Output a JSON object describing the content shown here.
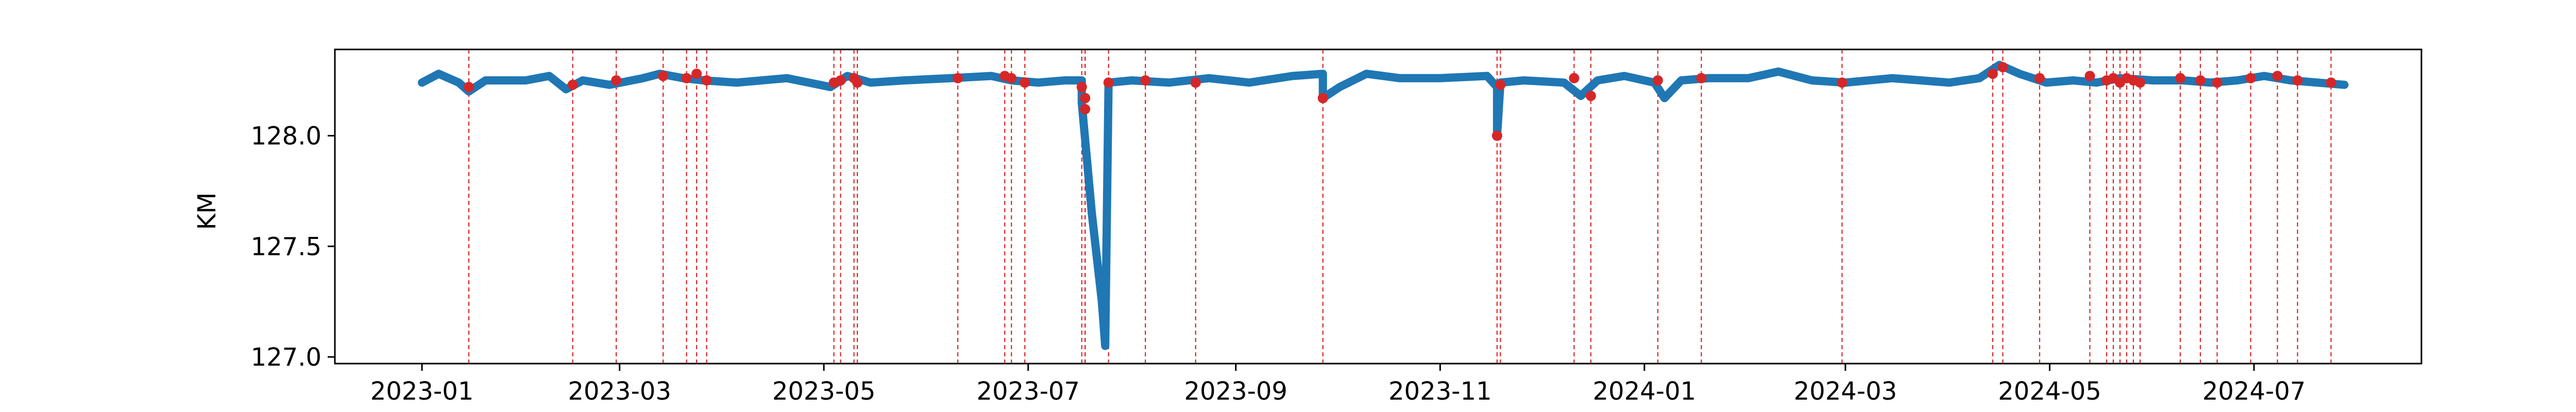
{
  "chart_data": {
    "type": "line",
    "title": "",
    "xlabel": "",
    "ylabel": "KM",
    "xlim": [
      "2022-12-06",
      "2024-08-20"
    ],
    "ylim": [
      126.97,
      128.39
    ],
    "x_ticks": [
      "2023-01",
      "2023-03",
      "2023-05",
      "2023-07",
      "2023-09",
      "2023-11",
      "2024-01",
      "2024-03",
      "2024-05",
      "2024-07"
    ],
    "y_ticks": [
      127.0,
      127.5,
      128.0
    ],
    "grid": false,
    "legend": "none",
    "series": [
      {
        "color": "#1f77b4",
        "points": [
          [
            "2023-01-01",
            128.24
          ],
          [
            "2023-01-06",
            128.28
          ],
          [
            "2023-01-12",
            128.24
          ],
          [
            "2023-01-15",
            128.2
          ],
          [
            "2023-01-20",
            128.25
          ],
          [
            "2023-02-01",
            128.25
          ],
          [
            "2023-02-08",
            128.27
          ],
          [
            "2023-02-13",
            128.21
          ],
          [
            "2023-02-18",
            128.25
          ],
          [
            "2023-02-26",
            128.23
          ],
          [
            "2023-03-08",
            128.26
          ],
          [
            "2023-03-13",
            128.28
          ],
          [
            "2023-03-20",
            128.26
          ],
          [
            "2023-03-26",
            128.25
          ],
          [
            "2023-04-05",
            128.24
          ],
          [
            "2023-04-20",
            128.26
          ],
          [
            "2023-05-03",
            128.22
          ],
          [
            "2023-05-08",
            128.27
          ],
          [
            "2023-05-15",
            128.24
          ],
          [
            "2023-05-25",
            128.25
          ],
          [
            "2023-06-08",
            128.26
          ],
          [
            "2023-06-20",
            128.27
          ],
          [
            "2023-06-26",
            128.25
          ],
          [
            "2023-07-04",
            128.24
          ],
          [
            "2023-07-12",
            128.25
          ],
          [
            "2023-07-17",
            128.25
          ],
          [
            "2023-07-17",
            128.15
          ],
          [
            "2023-07-20",
            127.65
          ],
          [
            "2023-07-23",
            127.25
          ],
          [
            "2023-07-24",
            127.05
          ],
          [
            "2023-07-25",
            128.24
          ],
          [
            "2023-08-01",
            128.25
          ],
          [
            "2023-08-12",
            128.24
          ],
          [
            "2023-08-24",
            128.26
          ],
          [
            "2023-09-05",
            128.24
          ],
          [
            "2023-09-18",
            128.27
          ],
          [
            "2023-09-27",
            128.28
          ],
          [
            "2023-09-27",
            128.17
          ],
          [
            "2023-10-02",
            128.22
          ],
          [
            "2023-10-10",
            128.28
          ],
          [
            "2023-10-20",
            128.26
          ],
          [
            "2023-11-01",
            128.26
          ],
          [
            "2023-11-15",
            128.27
          ],
          [
            "2023-11-18",
            128.22
          ],
          [
            "2023-11-18",
            128.0
          ],
          [
            "2023-11-19",
            128.24
          ],
          [
            "2023-11-26",
            128.25
          ],
          [
            "2023-12-08",
            128.24
          ],
          [
            "2023-12-13",
            128.18
          ],
          [
            "2023-12-18",
            128.25
          ],
          [
            "2023-12-26",
            128.27
          ],
          [
            "2024-01-04",
            128.24
          ],
          [
            "2024-01-07",
            128.17
          ],
          [
            "2024-01-12",
            128.25
          ],
          [
            "2024-01-20",
            128.26
          ],
          [
            "2024-02-01",
            128.26
          ],
          [
            "2024-02-10",
            128.29
          ],
          [
            "2024-02-20",
            128.25
          ],
          [
            "2024-03-01",
            128.24
          ],
          [
            "2024-03-15",
            128.26
          ],
          [
            "2024-04-01",
            128.24
          ],
          [
            "2024-04-10",
            128.26
          ],
          [
            "2024-04-16",
            128.32
          ],
          [
            "2024-04-22",
            128.28
          ],
          [
            "2024-04-30",
            128.24
          ],
          [
            "2024-05-08",
            128.25
          ],
          [
            "2024-05-15",
            128.24
          ],
          [
            "2024-05-22",
            128.26
          ],
          [
            "2024-06-01",
            128.25
          ],
          [
            "2024-06-10",
            128.25
          ],
          [
            "2024-06-18",
            128.24
          ],
          [
            "2024-06-26",
            128.25
          ],
          [
            "2024-07-04",
            128.27
          ],
          [
            "2024-07-12",
            128.25
          ],
          [
            "2024-07-20",
            128.24
          ],
          [
            "2024-07-28",
            128.23
          ]
        ]
      }
    ],
    "anomaly_color": "#d62728",
    "anomalies": [
      [
        "2023-01-15",
        128.22
      ],
      [
        "2023-02-15",
        128.23
      ],
      [
        "2023-02-28",
        128.25
      ],
      [
        "2023-03-14",
        128.27
      ],
      [
        "2023-03-21",
        128.26
      ],
      [
        "2023-03-24",
        128.28
      ],
      [
        "2023-03-27",
        128.25
      ],
      [
        "2023-05-04",
        128.24
      ],
      [
        "2023-05-06",
        128.25
      ],
      [
        "2023-05-10",
        128.26
      ],
      [
        "2023-05-11",
        128.24
      ],
      [
        "2023-06-10",
        128.26
      ],
      [
        "2023-06-24",
        128.27
      ],
      [
        "2023-06-26",
        128.26
      ],
      [
        "2023-06-30",
        128.24
      ],
      [
        "2023-07-17",
        128.22
      ],
      [
        "2023-07-18",
        128.17
      ],
      [
        "2023-07-18",
        128.12
      ],
      [
        "2023-07-25",
        128.24
      ],
      [
        "2023-08-05",
        128.25
      ],
      [
        "2023-08-20",
        128.24
      ],
      [
        "2023-09-27",
        128.17
      ],
      [
        "2023-11-18",
        128.0
      ],
      [
        "2023-11-19",
        128.23
      ],
      [
        "2023-12-11",
        128.26
      ],
      [
        "2023-12-16",
        128.18
      ],
      [
        "2024-01-05",
        128.25
      ],
      [
        "2024-01-18",
        128.26
      ],
      [
        "2024-02-29",
        128.24
      ],
      [
        "2024-04-14",
        128.28
      ],
      [
        "2024-04-17",
        128.31
      ],
      [
        "2024-04-28",
        128.26
      ],
      [
        "2024-05-13",
        128.27
      ],
      [
        "2024-05-18",
        128.25
      ],
      [
        "2024-05-20",
        128.26
      ],
      [
        "2024-05-22",
        128.24
      ],
      [
        "2024-05-24",
        128.26
      ],
      [
        "2024-05-26",
        128.25
      ],
      [
        "2024-05-28",
        128.24
      ],
      [
        "2024-06-09",
        128.26
      ],
      [
        "2024-06-15",
        128.25
      ],
      [
        "2024-06-20",
        128.24
      ],
      [
        "2024-06-30",
        128.26
      ],
      [
        "2024-07-08",
        128.27
      ],
      [
        "2024-07-14",
        128.25
      ],
      [
        "2024-07-24",
        128.24
      ]
    ]
  }
}
